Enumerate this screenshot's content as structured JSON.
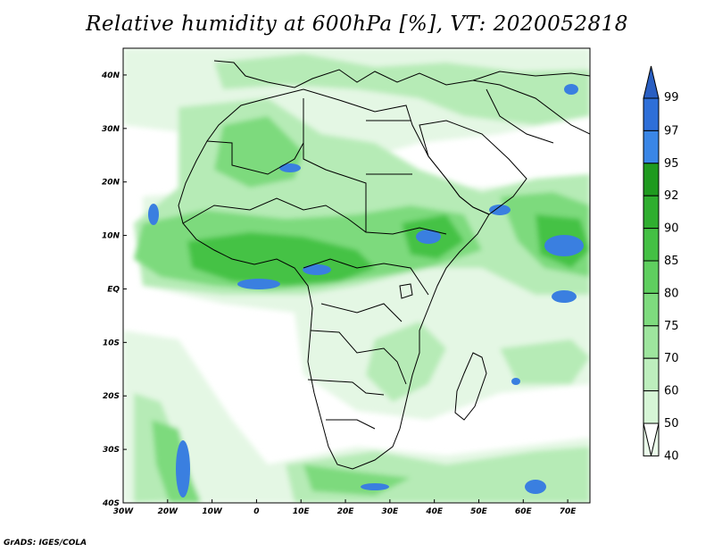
{
  "title": "Relative humidity at 600hPa [%], VT: 2020052818",
  "credit": "GrADS: IGES/COLA",
  "map": {
    "lon_range": [
      -30,
      75
    ],
    "lat_range": [
      -40,
      45
    ],
    "x_ticks": [
      {
        "lon": -30,
        "label": "30W"
      },
      {
        "lon": -20,
        "label": "20W"
      },
      {
        "lon": -10,
        "label": "10W"
      },
      {
        "lon": 0,
        "label": "0"
      },
      {
        "lon": 10,
        "label": "10E"
      },
      {
        "lon": 20,
        "label": "20E"
      },
      {
        "lon": 30,
        "label": "30E"
      },
      {
        "lon": 40,
        "label": "40E"
      },
      {
        "lon": 50,
        "label": "50E"
      },
      {
        "lon": 60,
        "label": "60E"
      },
      {
        "lon": 70,
        "label": "70E"
      }
    ],
    "y_ticks": [
      {
        "lat": 40,
        "label": "40N"
      },
      {
        "lat": 30,
        "label": "30N"
      },
      {
        "lat": 20,
        "label": "20N"
      },
      {
        "lat": 10,
        "label": "10N"
      },
      {
        "lat": 0,
        "label": "EQ"
      },
      {
        "lat": -10,
        "label": "10S"
      },
      {
        "lat": -20,
        "label": "20S"
      },
      {
        "lat": -30,
        "label": "30S"
      },
      {
        "lat": -40,
        "label": "40S"
      }
    ]
  },
  "colorbar": {
    "levels": [
      {
        "label": "99",
        "color": "#2e6fd8"
      },
      {
        "label": "97",
        "color": "#3a86e6"
      },
      {
        "label": "95",
        "color": "#1f9a1f"
      },
      {
        "label": "92",
        "color": "#2fae2f"
      },
      {
        "label": "90",
        "color": "#44c044"
      },
      {
        "label": "85",
        "color": "#5fcf5f"
      },
      {
        "label": "80",
        "color": "#7edb7e"
      },
      {
        "label": "75",
        "color": "#9ee59e"
      },
      {
        "label": "70",
        "color": "#bdeebd"
      },
      {
        "label": "60",
        "color": "#d6f5d6"
      },
      {
        "label": "50",
        "color": "#eafaea"
      },
      {
        "label": "40",
        "color": "#ffffff"
      }
    ],
    "top_color": "#2a5fc2"
  },
  "colors": {
    "very_light_green": "#e4f7e4",
    "light_green": "#b6ebb6",
    "mid_green": "#7dda7d",
    "strong_green": "#45c245",
    "blue": "#3a7fe0",
    "outline": "#000000"
  }
}
